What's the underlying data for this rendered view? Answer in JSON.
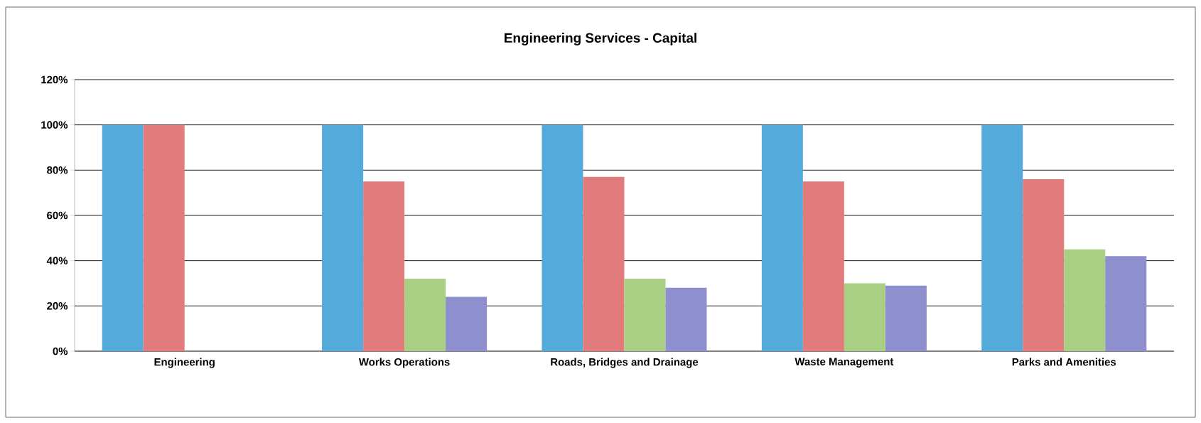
{
  "chart_data": {
    "type": "bar",
    "title": "Engineering Services - Capital",
    "categories": [
      "Engineering",
      "Works Operations",
      "Roads, Bridges and Drainage",
      "Waste Management",
      "Parks and Amenities"
    ],
    "series": [
      {
        "color": "#55aadc",
        "values": [
          100,
          100,
          100,
          100,
          100
        ]
      },
      {
        "color": "#e27c7c",
        "values": [
          100,
          75,
          77,
          75,
          76
        ]
      },
      {
        "color": "#a9cf84",
        "values": [
          null,
          32,
          32,
          30,
          45
        ]
      },
      {
        "color": "#8e8fce",
        "values": [
          null,
          24,
          28,
          29,
          42
        ]
      }
    ],
    "ylim": [
      0,
      120
    ],
    "yticks": [
      {
        "value": 0,
        "label": "0%"
      },
      {
        "value": 20,
        "label": "20%"
      },
      {
        "value": 40,
        "label": "40%"
      },
      {
        "value": 60,
        "label": "60%"
      },
      {
        "value": 80,
        "label": "80%"
      },
      {
        "value": 100,
        "label": "100%"
      },
      {
        "value": 120,
        "label": "120%"
      }
    ],
    "grid": "y"
  }
}
